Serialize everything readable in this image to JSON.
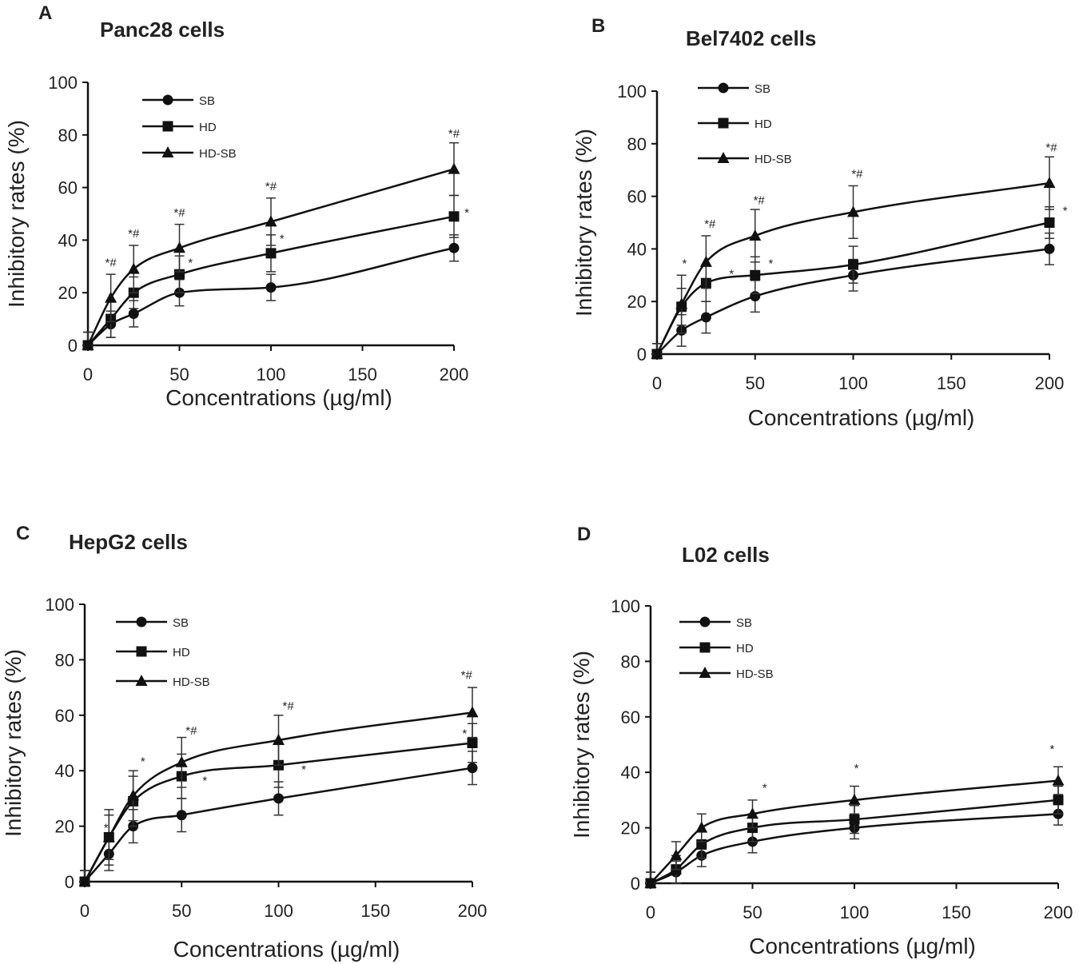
{
  "figure": {
    "panels_label": "Four-panel figure of inhibitory rates versus concentration"
  },
  "chart_data": [
    {
      "type": "line",
      "panel": "A",
      "title": "Panc28 cells",
      "xlabel": "Concentrations (µg/ml)",
      "ylabel": "Inhibitory rates (%)",
      "xlim": [
        0,
        200
      ],
      "ylim": [
        0,
        100
      ],
      "xticks": [
        "0",
        "50",
        "100",
        "150",
        "200"
      ],
      "yticks": [
        "0",
        "20",
        "40",
        "60",
        "80",
        "100"
      ],
      "x": [
        0,
        12.5,
        25,
        50,
        100,
        200
      ],
      "legend": "top-left",
      "series": [
        {
          "name": "SB",
          "marker": "circle",
          "values": [
            0,
            8,
            12,
            20,
            22,
            37
          ],
          "errors": [
            5,
            5,
            5,
            5,
            5,
            5
          ]
        },
        {
          "name": "HD",
          "marker": "square",
          "values": [
            0,
            10,
            20,
            27,
            35,
            49
          ],
          "errors": [
            5,
            7,
            6,
            7,
            7,
            8
          ]
        },
        {
          "name": "HD-SB",
          "marker": "triangle",
          "values": [
            0,
            18,
            29,
            37,
            47,
            67
          ],
          "errors": [
            5,
            9,
            9,
            9,
            9,
            10
          ]
        }
      ],
      "annotations": [
        {
          "x": 12.5,
          "y": 30,
          "text": "*#"
        },
        {
          "x": 25,
          "y": 41,
          "text": "*#"
        },
        {
          "x": 50,
          "y": 49,
          "text": "*#"
        },
        {
          "x": 100,
          "y": 59,
          "text": "*#"
        },
        {
          "x": 200,
          "y": 79,
          "text": "*#"
        },
        {
          "x": 56,
          "y": 30,
          "text": "*"
        },
        {
          "x": 106,
          "y": 39,
          "text": "*"
        },
        {
          "x": 207,
          "y": 49,
          "text": "*"
        }
      ]
    },
    {
      "type": "line",
      "panel": "B",
      "title": "Bel7402 cells",
      "xlabel": "Concentrations (µg/ml)",
      "ylabel": "Inhibitory rates (%)",
      "xlim": [
        0,
        200
      ],
      "ylim": [
        0,
        100
      ],
      "xticks": [
        "0",
        "50",
        "100",
        "150",
        "200"
      ],
      "yticks": [
        "0",
        "20",
        "40",
        "60",
        "80",
        "100"
      ],
      "x": [
        0,
        12.5,
        25,
        50,
        100,
        200
      ],
      "legend": "top-left",
      "series": [
        {
          "name": "SB",
          "marker": "circle",
          "values": [
            0,
            9,
            14,
            22,
            30,
            40
          ],
          "errors": [
            4,
            6,
            6,
            6,
            6,
            6
          ]
        },
        {
          "name": "HD",
          "marker": "square",
          "values": [
            0,
            18,
            27,
            30,
            34,
            50
          ],
          "errors": [
            4,
            7,
            7,
            7,
            7,
            6
          ]
        },
        {
          "name": "HD-SB",
          "marker": "triangle",
          "values": [
            0,
            19,
            35,
            45,
            54,
            65
          ],
          "errors": [
            4,
            11,
            10,
            10,
            10,
            10
          ]
        }
      ],
      "annotations": [
        {
          "x": 14,
          "y": 33,
          "text": "*"
        },
        {
          "x": 27,
          "y": 48,
          "text": "*#"
        },
        {
          "x": 52,
          "y": 57,
          "text": "*#"
        },
        {
          "x": 102,
          "y": 67,
          "text": "*#"
        },
        {
          "x": 201,
          "y": 77,
          "text": "*#"
        },
        {
          "x": 38,
          "y": 29,
          "text": "*"
        },
        {
          "x": 58,
          "y": 33,
          "text": "*"
        },
        {
          "x": 208,
          "y": 53,
          "text": "*"
        }
      ]
    },
    {
      "type": "line",
      "panel": "C",
      "title": "HepG2 cells",
      "xlabel": "Concentrations (µg/ml)",
      "ylabel": "Inhibitory rates (%)",
      "xlim": [
        0,
        200
      ],
      "ylim": [
        0,
        100
      ],
      "xticks": [
        "0",
        "50",
        "100",
        "150",
        "200"
      ],
      "yticks": [
        "0",
        "20",
        "40",
        "60",
        "80",
        "100"
      ],
      "x": [
        0,
        12.5,
        25,
        50,
        100,
        200
      ],
      "legend": "top-left",
      "series": [
        {
          "name": "SB",
          "marker": "circle",
          "values": [
            0,
            10,
            20,
            24,
            30,
            41
          ],
          "errors": [
            4,
            6,
            6,
            6,
            6,
            6
          ]
        },
        {
          "name": "HD",
          "marker": "square",
          "values": [
            0,
            16,
            29,
            38,
            42,
            50
          ],
          "errors": [
            4,
            8,
            9,
            8,
            8,
            7
          ]
        },
        {
          "name": "HD-SB",
          "marker": "triangle",
          "values": [
            0,
            16,
            31,
            43,
            51,
            61
          ],
          "errors": [
            4,
            10,
            9,
            9,
            9,
            9
          ]
        }
      ],
      "annotations": [
        {
          "x": 11,
          "y": 18,
          "text": "*"
        },
        {
          "x": 30,
          "y": 42,
          "text": "*"
        },
        {
          "x": 55,
          "y": 53,
          "text": "*#"
        },
        {
          "x": 105,
          "y": 62,
          "text": "*#"
        },
        {
          "x": 197,
          "y": 73,
          "text": "*#"
        },
        {
          "x": 62,
          "y": 35,
          "text": "*"
        },
        {
          "x": 113,
          "y": 39,
          "text": "*"
        },
        {
          "x": 196,
          "y": 52,
          "text": "*"
        }
      ]
    },
    {
      "type": "line",
      "panel": "D",
      "title": "L02 cells",
      "xlabel": "Concentrations (µg/ml)",
      "ylabel": "Inhibitory rates (%)",
      "xlim": [
        0,
        200
      ],
      "ylim": [
        0,
        100
      ],
      "xticks": [
        "0",
        "50",
        "100",
        "150",
        "200"
      ],
      "yticks": [
        "0",
        "20",
        "40",
        "60",
        "80",
        "100"
      ],
      "x": [
        0,
        12.5,
        25,
        50,
        100,
        200
      ],
      "legend": "top-left",
      "series": [
        {
          "name": "SB",
          "marker": "circle",
          "values": [
            0,
            4,
            10,
            15,
            20,
            25
          ],
          "errors": [
            4,
            4,
            4,
            4,
            4,
            4
          ]
        },
        {
          "name": "HD",
          "marker": "square",
          "values": [
            0,
            5,
            14,
            20,
            23,
            30
          ],
          "errors": [
            4,
            5,
            5,
            5,
            5,
            5
          ]
        },
        {
          "name": "HD-SB",
          "marker": "triangle",
          "values": [
            0,
            10,
            20,
            25,
            30,
            37
          ],
          "errors": [
            4,
            5,
            5,
            5,
            5,
            5
          ]
        }
      ],
      "annotations": [
        {
          "x": 56,
          "y": 33,
          "text": "*"
        },
        {
          "x": 101,
          "y": 40,
          "text": "*"
        },
        {
          "x": 197,
          "y": 47,
          "text": "*"
        }
      ]
    }
  ]
}
